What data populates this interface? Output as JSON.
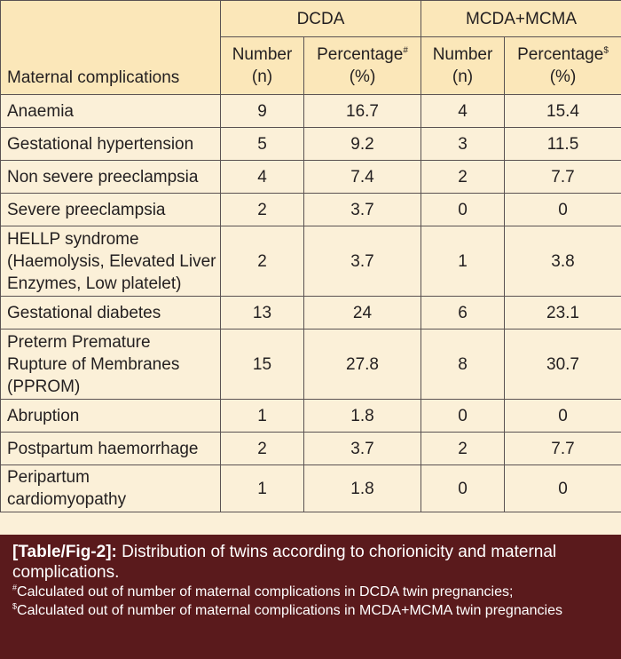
{
  "table": {
    "header": {
      "row_label": "Maternal complications",
      "groups": [
        "DCDA",
        "MCDA+MCMA"
      ],
      "number_label": "Number",
      "number_unit": "(n)",
      "percentage_label": "Percentage",
      "percentage_unit": "(%)",
      "dcda_pct_mark": "#",
      "mcda_pct_mark": "$"
    },
    "rows": [
      {
        "label": "Anaemia",
        "dcda_n": "9",
        "dcda_pct": "16.7",
        "mcda_n": "4",
        "mcda_pct": "15.4"
      },
      {
        "label": "Gestational hypertension",
        "dcda_n": "5",
        "dcda_pct": "9.2",
        "mcda_n": "3",
        "mcda_pct": "11.5"
      },
      {
        "label": "Non severe preeclampsia",
        "dcda_n": "4",
        "dcda_pct": "7.4",
        "mcda_n": "2",
        "mcda_pct": "7.7"
      },
      {
        "label": "Severe preeclampsia",
        "dcda_n": "2",
        "dcda_pct": "3.7",
        "mcda_n": "0",
        "mcda_pct": "0"
      },
      {
        "label_lines": [
          "HELLP syndrome",
          "(Haemolysis, Elevated Liver",
          "Enzymes, Low platelet)"
        ],
        "dcda_n": "2",
        "dcda_pct": "3.7",
        "mcda_n": "1",
        "mcda_pct": "3.8"
      },
      {
        "label": "Gestational diabetes",
        "dcda_n": "13",
        "dcda_pct": "24",
        "mcda_n": "6",
        "mcda_pct": "23.1"
      },
      {
        "label_lines": [
          "Preterm Premature",
          "Rupture of Membranes",
          "(PPROM)"
        ],
        "dcda_n": "15",
        "dcda_pct": "27.8",
        "mcda_n": "8",
        "mcda_pct": "30.7"
      },
      {
        "label": "Abruption",
        "dcda_n": "1",
        "dcda_pct": "1.8",
        "mcda_n": "0",
        "mcda_pct": "0"
      },
      {
        "label": "Postpartum haemorrhage",
        "dcda_n": "2",
        "dcda_pct": "3.7",
        "mcda_n": "2",
        "mcda_pct": "7.7"
      },
      {
        "label_lines": [
          "Peripartum",
          "cardiomyopathy"
        ],
        "dcda_n": "1",
        "dcda_pct": "1.8",
        "mcda_n": "0",
        "mcda_pct": "0"
      }
    ]
  },
  "caption": {
    "tag": "[Table/Fig-2]:",
    "text": "Distribution of twins according to chorionicity and maternal complications.",
    "note1_mark": "#",
    "note1_text": "Calculated out of number of maternal complications in DCDA twin pregnancies;",
    "note2_mark": "$",
    "note2_text": "Calculated out of number of maternal complications in MCDA+MCMA twin pregnancies"
  },
  "colors": {
    "table_bg": "#fbf0d8",
    "header_bg": "#fbe7b9",
    "border": "#5a5252",
    "caption_bg": "#5a1a1c",
    "caption_text": "#ffffff"
  }
}
